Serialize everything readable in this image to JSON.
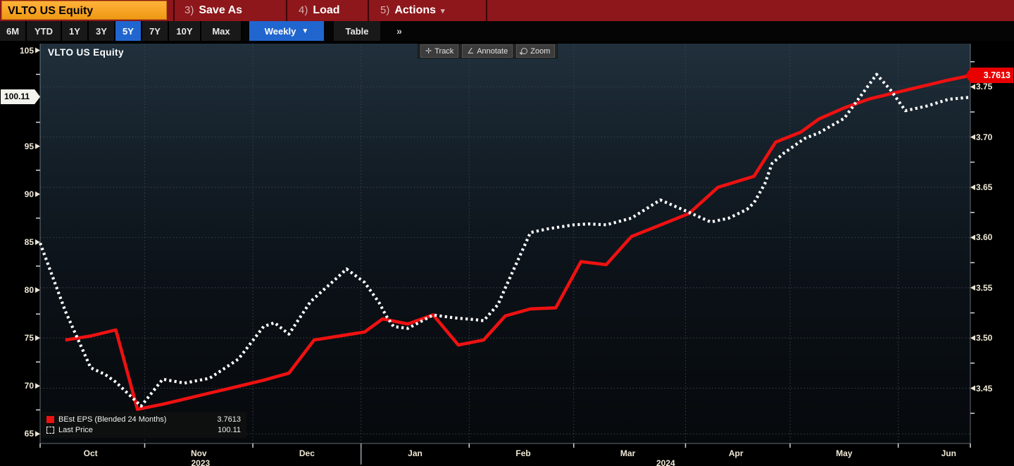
{
  "title_bar": {
    "security": "VLTO US Equity",
    "menus": [
      {
        "num": "3)",
        "label": "Save As"
      },
      {
        "num": "4)",
        "label": "Load"
      },
      {
        "num": "5)",
        "label": "Actions",
        "caret": "▾"
      }
    ]
  },
  "range_bar": {
    "ranges": [
      "6M",
      "YTD",
      "1Y",
      "3Y",
      "5Y",
      "7Y",
      "10Y",
      "Max"
    ],
    "selected": "5Y",
    "period": "Weekly",
    "period_caret": "▼",
    "table_label": "Table",
    "more_label": "»"
  },
  "chart": {
    "title": "VLTO US Equity",
    "tools": [
      {
        "icon": "track-crosshair-icon",
        "glyph": "✛",
        "label": "Track"
      },
      {
        "icon": "annotate-pencil-icon",
        "glyph": "∠",
        "label": "Annotate"
      },
      {
        "icon": "zoom-magnifier-icon",
        "glyph": "",
        "label": "Zoom"
      }
    ],
    "legend": [
      {
        "swatch": "red-solid",
        "label": "BEst EPS (Blended 24 Months)",
        "value": "3.7613"
      },
      {
        "swatch": "white-dotted",
        "label": "Last Price",
        "value": "100.11"
      }
    ],
    "left_axis": {
      "major_ticks": [
        105,
        95,
        90,
        85,
        80,
        75,
        70,
        65
      ],
      "minor_ticks": [
        102.5,
        97.5,
        92.5,
        87.5,
        82.5,
        77.5,
        72.5,
        67.5
      ],
      "price_tag": "100.11"
    },
    "right_axis": {
      "major_ticks": [
        "3.75",
        "3.70",
        "3.65",
        "3.60",
        "3.55",
        "3.50",
        "3.45"
      ],
      "minor_ticks": [
        3.775,
        3.725,
        3.675,
        3.625,
        3.575,
        3.525,
        3.475,
        3.425
      ],
      "value_tag": "3.7613"
    },
    "x_axis": {
      "total_days": 258,
      "months": [
        {
          "label": "Oct",
          "day": 14
        },
        {
          "label": "Nov",
          "day": 44
        },
        {
          "label": "Dec",
          "day": 74
        },
        {
          "label": "Jan",
          "day": 104
        },
        {
          "label": "Feb",
          "day": 134
        },
        {
          "label": "Mar",
          "day": 163
        },
        {
          "label": "Apr",
          "day": 193
        },
        {
          "label": "May",
          "day": 223
        },
        {
          "label": "Jun",
          "day": 252
        }
      ],
      "years": [
        {
          "label": "2023",
          "day": 44.5
        },
        {
          "label": "2024",
          "day": 173.5
        }
      ],
      "month_boundaries_days": [
        29,
        59,
        89,
        119,
        148,
        179,
        208,
        238
      ],
      "year_divider_day": 89
    }
  },
  "chart_data": {
    "type": "line",
    "title": "VLTO US Equity — Last Price vs BEst EPS (Blended 24 Months), Weekly, Oct 2023 – Jun 2024",
    "left_range": [
      64.0,
      105.7
    ],
    "right_range": [
      3.395,
      3.793
    ],
    "grid": "dotted",
    "legend_position": "bottom-left",
    "series": [
      {
        "name": "BEst EPS (Blended 24 Months)",
        "axis": "right",
        "color": "#ee1111",
        "style": "solid",
        "last_value": 3.7613,
        "points": [
          [
            7,
            3.498
          ],
          [
            14,
            3.502
          ],
          [
            21,
            3.508
          ],
          [
            27,
            3.429
          ],
          [
            34,
            3.434
          ],
          [
            41,
            3.44
          ],
          [
            48,
            3.446
          ],
          [
            55,
            3.452
          ],
          [
            62,
            3.458
          ],
          [
            69,
            3.465
          ],
          [
            76,
            3.498
          ],
          [
            83,
            3.502
          ],
          [
            90,
            3.506
          ],
          [
            95,
            3.519
          ],
          [
            102,
            3.514
          ],
          [
            109,
            3.523
          ],
          [
            116,
            3.493
          ],
          [
            123,
            3.498
          ],
          [
            129,
            3.522
          ],
          [
            136,
            3.529
          ],
          [
            143,
            3.53
          ],
          [
            150,
            3.576
          ],
          [
            157,
            3.573
          ],
          [
            164,
            3.601
          ],
          [
            171,
            3.611
          ],
          [
            180,
            3.624
          ],
          [
            188,
            3.65
          ],
          [
            198,
            3.661
          ],
          [
            204,
            3.695
          ],
          [
            211,
            3.705
          ],
          [
            216,
            3.718
          ],
          [
            223,
            3.729
          ],
          [
            230,
            3.738
          ],
          [
            237,
            3.744
          ],
          [
            244,
            3.75
          ],
          [
            251,
            3.756
          ],
          [
            258,
            3.7613
          ]
        ]
      },
      {
        "name": "Last Price",
        "axis": "left",
        "color": "#ffffff",
        "style": "dotted",
        "last_value": 100.11,
        "points": [
          [
            0,
            84.9
          ],
          [
            7,
            77.8
          ],
          [
            14,
            71.9
          ],
          [
            18,
            71.2
          ],
          [
            21,
            70.4
          ],
          [
            28,
            67.9
          ],
          [
            34,
            70.7
          ],
          [
            40,
            70.3
          ],
          [
            47,
            70.8
          ],
          [
            55,
            72.8
          ],
          [
            62,
            76.2
          ],
          [
            65,
            76.6
          ],
          [
            69,
            75.4
          ],
          [
            75,
            78.8
          ],
          [
            83,
            81.5
          ],
          [
            85,
            82.2
          ],
          [
            90,
            80.8
          ],
          [
            94,
            78.7
          ],
          [
            96,
            77.3
          ],
          [
            98,
            76.2
          ],
          [
            102,
            76.0
          ],
          [
            109,
            77.4
          ],
          [
            115,
            77.1
          ],
          [
            121,
            76.9
          ],
          [
            123,
            76.8
          ],
          [
            127,
            78.5
          ],
          [
            129,
            80.2
          ],
          [
            136,
            86.0
          ],
          [
            141,
            86.4
          ],
          [
            148,
            86.8
          ],
          [
            152,
            86.9
          ],
          [
            157,
            86.8
          ],
          [
            164,
            87.5
          ],
          [
            172,
            89.4
          ],
          [
            180,
            88.1
          ],
          [
            186,
            87.1
          ],
          [
            191,
            87.5
          ],
          [
            196,
            88.4
          ],
          [
            198,
            89.1
          ],
          [
            201,
            91.1
          ],
          [
            203,
            93.2
          ],
          [
            206,
            94.2
          ],
          [
            209,
            95.0
          ],
          [
            212,
            95.8
          ],
          [
            216,
            96.4
          ],
          [
            223,
            97.9
          ],
          [
            232,
            102.5
          ],
          [
            236,
            100.8
          ],
          [
            240,
            98.7
          ],
          [
            246,
            99.2
          ],
          [
            252,
            99.9
          ],
          [
            258,
            100.11
          ]
        ]
      }
    ]
  },
  "colors": {
    "menu_bar": "#8d171b",
    "security_box": "#f5a01a",
    "accent_blue": "#2166cf",
    "line_red": "#ee1111",
    "line_white": "#ffffff",
    "eps_tag_bg": "#e80000",
    "price_tag_bg": "#f3f3ee",
    "plot_bg_top": "#20303c",
    "plot_bg_bottom": "#06090c"
  }
}
